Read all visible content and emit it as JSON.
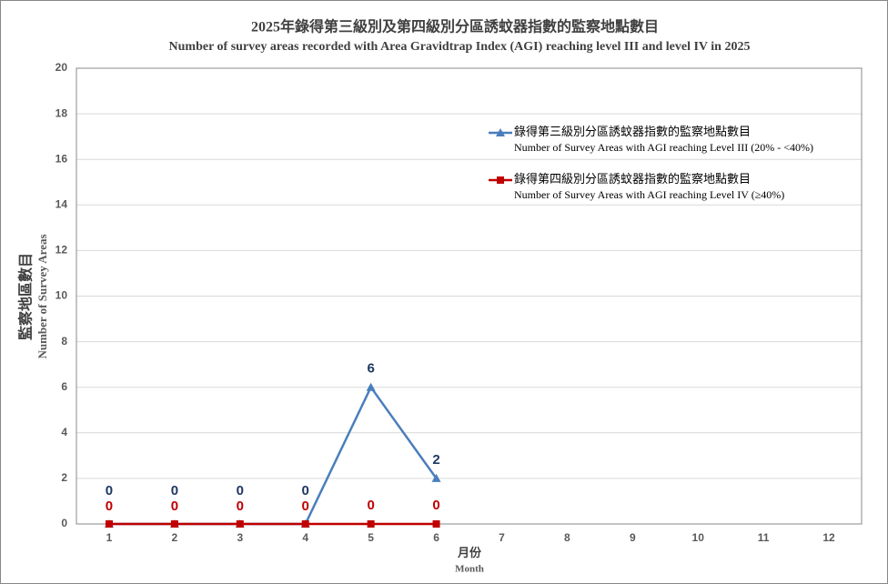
{
  "chart_data": {
    "type": "line",
    "title": "2025年錄得第三級別及第四級別分區誘蚊器指數的監察地點數目",
    "subtitle": "Number of survey areas recorded with Area Gravidtrap Index (AGI) reaching level III and level IV in 2025",
    "y_label": "監察地區數目",
    "y_label_en": "Number of Survey Areas",
    "x_label": "月份",
    "x_label_en": "Month",
    "categories": [
      "1",
      "2",
      "3",
      "4",
      "5",
      "6",
      "7",
      "8",
      "9",
      "10",
      "11",
      "12"
    ],
    "series": [
      {
        "name": "錄得第三級別分區誘蚊器指數的監察地點數目",
        "name_en": "Number of Survey Areas with AGI reaching Level III (20% - <40%)",
        "color": "#4a7ebb",
        "marker": "triangle",
        "label_color": "#1f3864",
        "values": [
          0,
          0,
          0,
          0,
          6,
          2,
          null,
          null,
          null,
          null,
          null,
          null
        ]
      },
      {
        "name": "錄得第四級別分區誘蚊器指數的監察地點數目",
        "name_en": "Number of Survey Areas with AGI reaching Level IV (≥40%)",
        "color": "#c00000",
        "marker": "square",
        "label_color": "#c00000",
        "values": [
          0,
          0,
          0,
          0,
          0,
          0,
          null,
          null,
          null,
          null,
          null,
          null
        ]
      }
    ],
    "ylim": [
      0,
      20
    ],
    "yticks": [
      0,
      2,
      4,
      6,
      8,
      10,
      12,
      14,
      16,
      18,
      20
    ],
    "grid": true
  }
}
